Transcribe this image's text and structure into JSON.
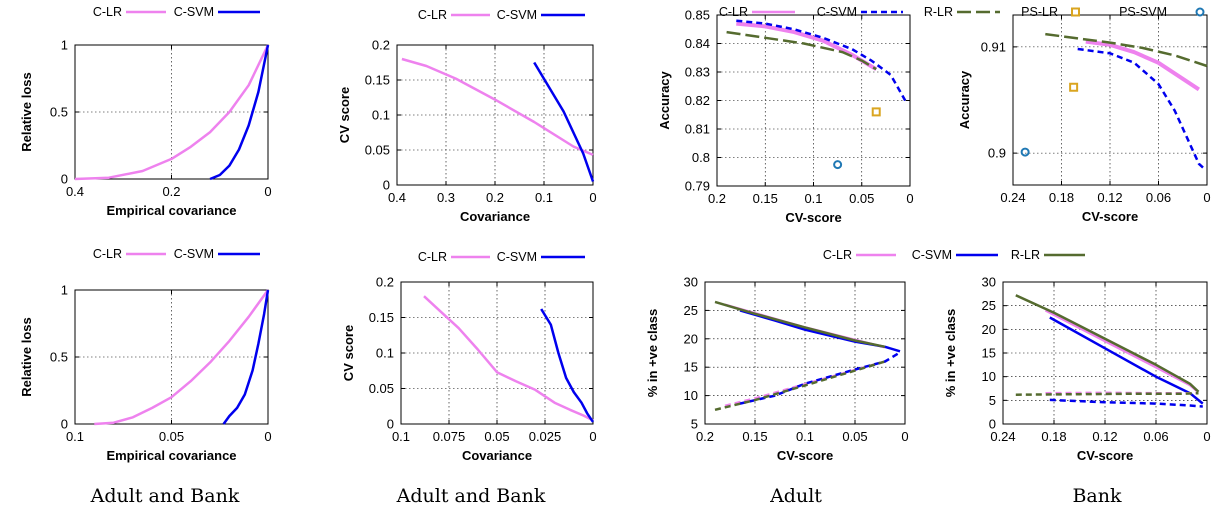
{
  "colors": {
    "c_lr": "#ee82ee",
    "c_svm": "#0000ee",
    "r_lr": "#556b2f",
    "ps_lr": "#daa520",
    "ps_svm": "#1f78b4"
  },
  "captions": [
    "Adult and Bank",
    "Adult and Bank",
    "Adult",
    "Bank"
  ],
  "chart_data": [
    {
      "id": "p1",
      "type": "line",
      "xlabel": "Empirical covariance",
      "ylabel": "Relative loss",
      "xlim": [
        0.4,
        0
      ],
      "ylim": [
        0,
        1
      ],
      "xticks": [
        {
          "v": 0.4,
          "t": "0.4"
        },
        {
          "v": 0.2,
          "t": "0.2"
        },
        {
          "v": 0,
          "t": "0"
        }
      ],
      "yticks": [
        {
          "v": 0,
          "t": "0"
        },
        {
          "v": 0.5,
          "t": "0.5"
        },
        {
          "v": 1,
          "t": "1"
        }
      ],
      "legend": [
        "C-LR",
        "C-SVM"
      ],
      "series": [
        {
          "name": "C-LR",
          "color": "c_lr",
          "dash": false,
          "x": [
            0.4,
            0.33,
            0.26,
            0.2,
            0.16,
            0.12,
            0.08,
            0.04,
            0
          ],
          "y": [
            0,
            0.01,
            0.06,
            0.15,
            0.24,
            0.35,
            0.5,
            0.7,
            1
          ]
        },
        {
          "name": "C-SVM",
          "color": "c_svm",
          "dash": false,
          "x": [
            0.12,
            0.1,
            0.08,
            0.06,
            0.04,
            0.02,
            0
          ],
          "y": [
            0,
            0.03,
            0.1,
            0.22,
            0.4,
            0.65,
            1
          ]
        }
      ]
    },
    {
      "id": "p2",
      "type": "line",
      "xlabel": "Covariance",
      "ylabel": "CV score",
      "xlim": [
        0.4,
        0
      ],
      "ylim": [
        0,
        0.2
      ],
      "xticks": [
        {
          "v": 0.4,
          "t": "0.4"
        },
        {
          "v": 0.3,
          "t": "0.3"
        },
        {
          "v": 0.2,
          "t": "0.2"
        },
        {
          "v": 0.1,
          "t": "0.1"
        },
        {
          "v": 0,
          "t": "0"
        }
      ],
      "yticks": [
        {
          "v": 0,
          "t": "0"
        },
        {
          "v": 0.05,
          "t": "0.05"
        },
        {
          "v": 0.1,
          "t": "0.1"
        },
        {
          "v": 0.15,
          "t": "0.15"
        },
        {
          "v": 0.2,
          "t": "0.2"
        }
      ],
      "legend": [
        "C-LR",
        "C-SVM"
      ],
      "series": [
        {
          "name": "C-LR",
          "color": "c_lr",
          "dash": false,
          "x": [
            0.39,
            0.34,
            0.28,
            0.2,
            0.12,
            0.04,
            0
          ],
          "y": [
            0.18,
            0.17,
            0.152,
            0.122,
            0.09,
            0.055,
            0.043
          ]
        },
        {
          "name": "C-SVM",
          "color": "c_svm",
          "dash": false,
          "x": [
            0.12,
            0.09,
            0.06,
            0.04,
            0.02,
            0.01,
            0
          ],
          "y": [
            0.175,
            0.14,
            0.105,
            0.075,
            0.045,
            0.025,
            0.005
          ]
        }
      ]
    },
    {
      "id": "p3",
      "type": "line",
      "xlabel": "CV-score",
      "ylabel": "Accuracy",
      "xlim": [
        0.2,
        0
      ],
      "ylim": [
        0.79,
        0.85
      ],
      "xticks": [
        {
          "v": 0.2,
          "t": "0.2"
        },
        {
          "v": 0.15,
          "t": "0.15"
        },
        {
          "v": 0.1,
          "t": "0.1"
        },
        {
          "v": 0.05,
          "t": "0.05"
        },
        {
          "v": 0,
          "t": "0"
        }
      ],
      "yticks": [
        {
          "v": 0.79,
          "t": "0.79"
        },
        {
          "v": 0.8,
          "t": "0.8"
        },
        {
          "v": 0.81,
          "t": "0.81"
        },
        {
          "v": 0.82,
          "t": "0.82"
        },
        {
          "v": 0.83,
          "t": "0.83"
        },
        {
          "v": 0.84,
          "t": "0.84"
        },
        {
          "v": 0.85,
          "t": "0.85"
        }
      ],
      "legend": [
        "C-LR",
        "C-SVM",
        "R-LR",
        "PS-LR",
        "PS-SVM"
      ],
      "series": [
        {
          "name": "C-LR",
          "color": "c_lr",
          "dash": false,
          "width": 4,
          "x": [
            0.18,
            0.15,
            0.12,
            0.09,
            0.06,
            0.035
          ],
          "y": [
            0.847,
            0.846,
            0.844,
            0.841,
            0.836,
            0.831
          ]
        },
        {
          "name": "C-SVM",
          "color": "c_svm",
          "dash": true,
          "width": 2.5,
          "x": [
            0.18,
            0.15,
            0.12,
            0.09,
            0.06,
            0.04,
            0.02,
            0.005
          ],
          "y": [
            0.848,
            0.847,
            0.845,
            0.842,
            0.838,
            0.834,
            0.829,
            0.82
          ]
        },
        {
          "name": "R-LR",
          "color": "r_lr",
          "dash": true,
          "long": true,
          "width": 2.5,
          "x": [
            0.19,
            0.15,
            0.11,
            0.07,
            0.05,
            0.035
          ],
          "y": [
            0.844,
            0.842,
            0.84,
            0.837,
            0.834,
            0.831
          ]
        }
      ],
      "points": [
        {
          "name": "PS-LR",
          "color": "ps_lr",
          "shape": "square",
          "x": 0.035,
          "y": 0.816
        },
        {
          "name": "PS-SVM",
          "color": "ps_svm",
          "shape": "circle",
          "x": 0.075,
          "y": 0.7975
        }
      ]
    },
    {
      "id": "p4",
      "type": "line",
      "xlabel": "CV-score",
      "ylabel": "Accuracy",
      "xlim": [
        0.24,
        0
      ],
      "ylim": [
        0.897,
        0.913
      ],
      "xticks": [
        {
          "v": 0.24,
          "t": "0.24"
        },
        {
          "v": 0.18,
          "t": "0.18"
        },
        {
          "v": 0.12,
          "t": "0.12"
        },
        {
          "v": 0.06,
          "t": "0.06"
        },
        {
          "v": 0,
          "t": "0"
        }
      ],
      "yticks": [
        {
          "v": 0.9,
          "t": "0.9"
        },
        {
          "v": 0.91,
          "t": "0.91"
        }
      ],
      "legend": [],
      "series": [
        {
          "name": "C-LR",
          "color": "c_lr",
          "dash": false,
          "width": 4,
          "x": [
            0.15,
            0.12,
            0.09,
            0.06,
            0.03,
            0.01
          ],
          "y": [
            0.9105,
            0.9102,
            0.9095,
            0.9085,
            0.907,
            0.906
          ]
        },
        {
          "name": "C-SVM",
          "color": "c_svm",
          "dash": true,
          "width": 2.5,
          "x": [
            0.16,
            0.12,
            0.09,
            0.06,
            0.04,
            0.025,
            0.01,
            0.003
          ],
          "y": [
            0.9098,
            0.9094,
            0.9085,
            0.9065,
            0.904,
            0.9015,
            0.899,
            0.8985
          ]
        },
        {
          "name": "R-LR",
          "color": "r_lr",
          "dash": true,
          "long": true,
          "width": 2.5,
          "x": [
            0.2,
            0.16,
            0.12,
            0.08,
            0.04,
            0
          ],
          "y": [
            0.9112,
            0.9108,
            0.9104,
            0.9099,
            0.9092,
            0.9082
          ]
        }
      ],
      "points": [
        {
          "name": "PS-LR",
          "color": "ps_lr",
          "shape": "square",
          "x": 0.165,
          "y": 0.9062
        },
        {
          "name": "PS-SVM",
          "color": "ps_svm",
          "shape": "circle",
          "x": 0.225,
          "y": 0.9001
        }
      ]
    },
    {
      "id": "p5",
      "type": "line",
      "xlabel": "Empirical covariance",
      "ylabel": "Relative loss",
      "xlim": [
        0.1,
        0
      ],
      "ylim": [
        0,
        1
      ],
      "xticks": [
        {
          "v": 0.1,
          "t": "0.1"
        },
        {
          "v": 0.05,
          "t": "0.05"
        },
        {
          "v": 0,
          "t": "0"
        }
      ],
      "yticks": [
        {
          "v": 0,
          "t": "0"
        },
        {
          "v": 0.5,
          "t": "0.5"
        },
        {
          "v": 1,
          "t": "1"
        }
      ],
      "legend": [
        "C-LR",
        "C-SVM"
      ],
      "series": [
        {
          "name": "C-LR",
          "color": "c_lr",
          "dash": false,
          "x": [
            0.09,
            0.08,
            0.07,
            0.06,
            0.05,
            0.04,
            0.03,
            0.02,
            0.01,
            0
          ],
          "y": [
            0,
            0.01,
            0.05,
            0.12,
            0.2,
            0.32,
            0.46,
            0.62,
            0.8,
            1
          ]
        },
        {
          "name": "C-SVM",
          "color": "c_svm",
          "dash": false,
          "x": [
            0.023,
            0.02,
            0.016,
            0.012,
            0.008,
            0.005,
            0.002,
            0
          ],
          "y": [
            0,
            0.06,
            0.12,
            0.22,
            0.4,
            0.6,
            0.82,
            1
          ]
        }
      ]
    },
    {
      "id": "p6",
      "type": "line",
      "xlabel": "Covariance",
      "ylabel": "CV score",
      "xlim": [
        0.1,
        0
      ],
      "ylim": [
        0,
        0.2
      ],
      "xticks": [
        {
          "v": 0.1,
          "t": "0.1"
        },
        {
          "v": 0.075,
          "t": "0.075"
        },
        {
          "v": 0.05,
          "t": "0.05"
        },
        {
          "v": 0.025,
          "t": "0.025"
        },
        {
          "v": 0,
          "t": "0"
        }
      ],
      "yticks": [
        {
          "v": 0,
          "t": "0"
        },
        {
          "v": 0.05,
          "t": "0.05"
        },
        {
          "v": 0.1,
          "t": "0.1"
        },
        {
          "v": 0.15,
          "t": "0.15"
        },
        {
          "v": 0.2,
          "t": "0.2"
        }
      ],
      "legend": [
        "C-LR",
        "C-SVM"
      ],
      "series": [
        {
          "name": "C-LR",
          "color": "c_lr",
          "dash": false,
          "x": [
            0.088,
            0.08,
            0.07,
            0.06,
            0.05,
            0.04,
            0.03,
            0.02,
            0.012,
            0.005,
            0
          ],
          "y": [
            0.18,
            0.16,
            0.135,
            0.105,
            0.073,
            0.06,
            0.048,
            0.03,
            0.02,
            0.012,
            0.005
          ]
        },
        {
          "name": "C-SVM",
          "color": "c_svm",
          "dash": false,
          "x": [
            0.027,
            0.022,
            0.018,
            0.014,
            0.01,
            0.006,
            0.003,
            0
          ],
          "y": [
            0.162,
            0.14,
            0.1,
            0.065,
            0.045,
            0.03,
            0.015,
            0.003
          ]
        }
      ]
    },
    {
      "id": "p7",
      "type": "line",
      "xlabel": "CV-score",
      "ylabel": "% in +ve class",
      "xlim": [
        0.2,
        0
      ],
      "ylim": [
        5,
        30
      ],
      "xticks": [
        {
          "v": 0.2,
          "t": "0.2"
        },
        {
          "v": 0.15,
          "t": "0.15"
        },
        {
          "v": 0.1,
          "t": "0.1"
        },
        {
          "v": 0.05,
          "t": "0.05"
        },
        {
          "v": 0,
          "t": "0"
        }
      ],
      "yticks": [
        {
          "v": 5,
          "t": "5"
        },
        {
          "v": 10,
          "t": "10"
        },
        {
          "v": 15,
          "t": "15"
        },
        {
          "v": 20,
          "t": "20"
        },
        {
          "v": 25,
          "t": "25"
        },
        {
          "v": 30,
          "t": "30"
        }
      ],
      "legend": [
        "C-LR",
        "C-SVM",
        "R-LR"
      ],
      "series": [
        {
          "name": "C-LR",
          "color": "c_lr",
          "dash": false,
          "x": [
            0.18,
            0.15,
            0.1,
            0.05,
            0.02
          ],
          "y": [
            26,
            24.5,
            22,
            19.8,
            18.5
          ]
        },
        {
          "name": "C-SVM",
          "color": "c_svm",
          "dash": false,
          "x": [
            0.165,
            0.13,
            0.1,
            0.05,
            0.02,
            0.005
          ],
          "y": [
            25,
            23.2,
            21.6,
            19.5,
            18.6,
            17.8
          ]
        },
        {
          "name": "R-LR",
          "color": "r_lr",
          "dash": false,
          "x": [
            0.19,
            0.15,
            0.1,
            0.05,
            0.02
          ],
          "y": [
            26.5,
            24.4,
            22,
            19.7,
            18.6
          ]
        },
        {
          "name": "C-LR",
          "color": "c_lr",
          "dash": true,
          "x": [
            0.18,
            0.15,
            0.1,
            0.05,
            0.02
          ],
          "y": [
            8.2,
            9.5,
            12,
            14.5,
            16
          ]
        },
        {
          "name": "C-SVM",
          "color": "c_svm",
          "dash": true,
          "x": [
            0.165,
            0.13,
            0.1,
            0.05,
            0.02,
            0.005
          ],
          "y": [
            8.6,
            10,
            12.1,
            14.6,
            16,
            17.6
          ]
        },
        {
          "name": "R-LR",
          "color": "r_lr",
          "dash": true,
          "x": [
            0.19,
            0.15,
            0.1,
            0.05,
            0.02
          ],
          "y": [
            7.5,
            9.2,
            11.8,
            14.4,
            16
          ]
        }
      ]
    },
    {
      "id": "p8",
      "type": "line",
      "xlabel": "CV-score",
      "ylabel": "% in +ve class",
      "xlim": [
        0.24,
        0
      ],
      "ylim": [
        0,
        30
      ],
      "xticks": [
        {
          "v": 0.24,
          "t": "0.24"
        },
        {
          "v": 0.18,
          "t": "0.18"
        },
        {
          "v": 0.12,
          "t": "0.12"
        },
        {
          "v": 0.06,
          "t": "0.06"
        },
        {
          "v": 0,
          "t": "0"
        }
      ],
      "yticks": [
        {
          "v": 0,
          "t": "0"
        },
        {
          "v": 5,
          "t": "5"
        },
        {
          "v": 10,
          "t": "10"
        },
        {
          "v": 15,
          "t": "15"
        },
        {
          "v": 20,
          "t": "20"
        },
        {
          "v": 25,
          "t": "25"
        },
        {
          "v": 30,
          "t": "30"
        }
      ],
      "legend": [],
      "series": [
        {
          "name": "C-LR",
          "color": "c_lr",
          "dash": false,
          "x": [
            0.19,
            0.12,
            0.06,
            0.02,
            0.012
          ],
          "y": [
            24,
            17.5,
            12,
            8.2,
            7
          ]
        },
        {
          "name": "C-SVM",
          "color": "c_svm",
          "dash": false,
          "x": [
            0.185,
            0.12,
            0.06,
            0.02,
            0.005
          ],
          "y": [
            22.5,
            16,
            10,
            6.5,
            4.3
          ]
        },
        {
          "name": "R-LR",
          "color": "r_lr",
          "dash": false,
          "x": [
            0.225,
            0.18,
            0.12,
            0.06,
            0.02,
            0.01
          ],
          "y": [
            27.2,
            23.5,
            18,
            12.5,
            8.5,
            6.8
          ]
        },
        {
          "name": "C-LR",
          "color": "c_lr",
          "dash": true,
          "x": [
            0.19,
            0.12,
            0.06,
            0.012
          ],
          "y": [
            6.5,
            6.6,
            6.5,
            6.5
          ]
        },
        {
          "name": "C-SVM",
          "color": "c_svm",
          "dash": true,
          "x": [
            0.185,
            0.12,
            0.06,
            0.02,
            0.005
          ],
          "y": [
            5.1,
            4.6,
            4.3,
            3.9,
            3.7
          ]
        },
        {
          "name": "R-LR",
          "color": "r_lr",
          "dash": true,
          "x": [
            0.225,
            0.15,
            0.08,
            0.03,
            0.01
          ],
          "y": [
            6.2,
            6.3,
            6.4,
            6.4,
            6.5
          ]
        }
      ]
    }
  ],
  "legends": {
    "top_left": [
      "C-LR",
      "C-SVM"
    ],
    "top_mid": [
      "C-LR",
      "C-SVM"
    ],
    "top_right": [
      "C-LR",
      "C-SVM",
      "R-LR",
      "PS-LR",
      "PS-SVM"
    ],
    "bot_left": [
      "C-LR",
      "C-SVM"
    ],
    "bot_mid": [
      "C-LR",
      "C-SVM"
    ],
    "bot_right": [
      "C-LR",
      "C-SVM",
      "R-LR"
    ]
  }
}
